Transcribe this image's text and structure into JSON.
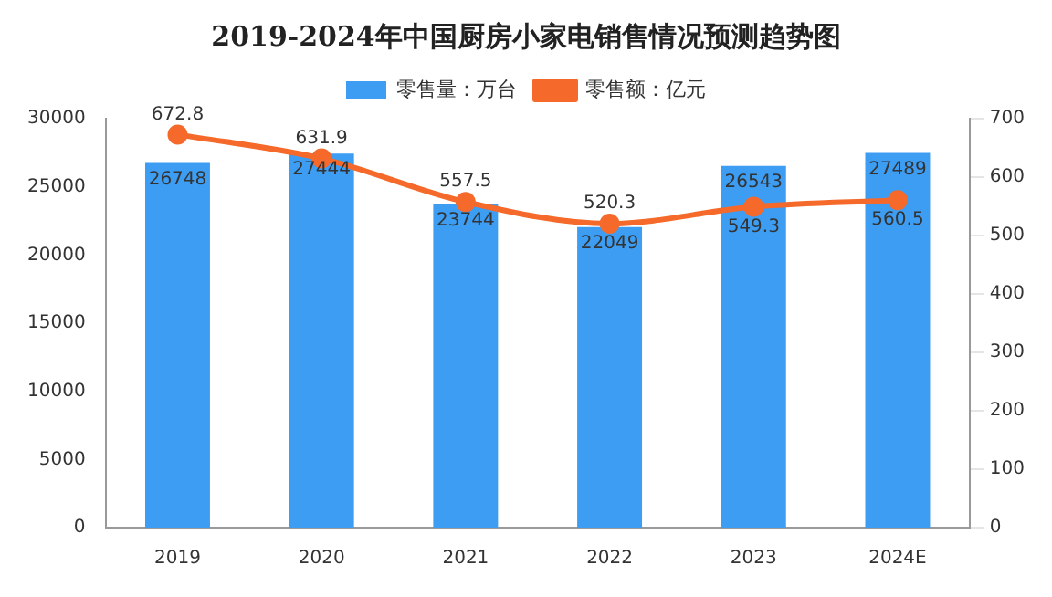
{
  "chart_data": {
    "type": "bar",
    "title": "2019-2024年中国厨房小家电销售情况预测趋势图",
    "categories": [
      "2019",
      "2020",
      "2021",
      "2022",
      "2023",
      "2024E"
    ],
    "series": [
      {
        "name": "零售量：万台",
        "color": "#3d9df3",
        "values": [
          26748,
          27444,
          23744,
          22049,
          26543,
          27489
        ]
      },
      {
        "name": "零售额：亿元",
        "type": "line",
        "axis": "y2",
        "color": "#f5692a",
        "marker": "circle",
        "values": [
          672.8,
          631.9,
          557.5,
          520.3,
          549.3,
          560.5
        ]
      }
    ],
    "ylim": [
      0,
      30000
    ],
    "yticks": [
      0,
      5000,
      10000,
      15000,
      20000,
      25000,
      30000
    ],
    "y2lim": [
      0,
      700
    ],
    "y2ticks": [
      0,
      100,
      200,
      300,
      400,
      500,
      600,
      700
    ],
    "data_labels": true,
    "legend": "top",
    "grid": false
  }
}
